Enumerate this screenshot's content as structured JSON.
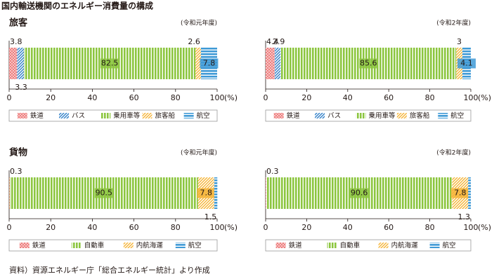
{
  "title": "国内輸送機関のエネルギー消費量の構成",
  "source": "資料）資源エネルギー庁「総合エネルギー統計」より作成",
  "chart_data": [
    {
      "type": "stacked_bar",
      "section": "旅客",
      "subtitle": "(令和元年度)",
      "x_unit": "(%)",
      "xlim": [
        0,
        100
      ],
      "xticks": [
        0,
        20,
        40,
        60,
        80,
        100
      ],
      "series": [
        {
          "name": "鉄道",
          "color": "#ee7f7f",
          "pattern": "check",
          "values": [
            3.8
          ]
        },
        {
          "name": "バス",
          "color": "#2f7fc8",
          "pattern": "diagonal",
          "values": [
            3.3
          ]
        },
        {
          "name": "乗用車等",
          "color": "#8cc63f",
          "pattern": "vertical",
          "values": [
            82.5
          ]
        },
        {
          "name": "旅客船",
          "color": "#f5b335",
          "pattern": "diagonal",
          "values": [
            2.6
          ]
        },
        {
          "name": "航空",
          "color": "#3f9ad6",
          "pattern": "horizontal",
          "values": [
            7.8
          ]
        }
      ]
    },
    {
      "type": "stacked_bar",
      "subtitle": "(令和2年度)",
      "x_unit": "(%)",
      "xlim": [
        0,
        100
      ],
      "xticks": [
        0,
        20,
        40,
        60,
        80,
        100
      ],
      "series": [
        {
          "name": "鉄道",
          "color": "#ee7f7f",
          "pattern": "check",
          "values": [
            4.4
          ]
        },
        {
          "name": "バス",
          "color": "#2f7fc8",
          "pattern": "diagonal",
          "values": [
            2.9
          ]
        },
        {
          "name": "乗用車等",
          "color": "#8cc63f",
          "pattern": "vertical",
          "values": [
            85.6
          ]
        },
        {
          "name": "旅客船",
          "color": "#f5b335",
          "pattern": "diagonal",
          "values": [
            3.0
          ]
        },
        {
          "name": "航空",
          "color": "#3f9ad6",
          "pattern": "horizontal",
          "values": [
            4.1
          ]
        }
      ]
    },
    {
      "type": "stacked_bar",
      "section": "貨物",
      "subtitle": "(令和元年度)",
      "x_unit": "(%)",
      "xlim": [
        0,
        100
      ],
      "xticks": [
        0,
        20,
        40,
        60,
        80,
        100
      ],
      "series": [
        {
          "name": "鉄道",
          "color": "#ee7f7f",
          "pattern": "check",
          "values": [
            0.3
          ]
        },
        {
          "name": "自動車",
          "color": "#8cc63f",
          "pattern": "vertical",
          "values": [
            90.5
          ]
        },
        {
          "name": "内航海運",
          "color": "#f5b335",
          "pattern": "diagonal",
          "values": [
            7.8
          ]
        },
        {
          "name": "航空",
          "color": "#3f9ad6",
          "pattern": "horizontal",
          "values": [
            1.5
          ]
        }
      ]
    },
    {
      "type": "stacked_bar",
      "subtitle": "(令和2年度)",
      "x_unit": "(%)",
      "xlim": [
        0,
        100
      ],
      "xticks": [
        0,
        20,
        40,
        60,
        80,
        100
      ],
      "series": [
        {
          "name": "鉄道",
          "color": "#ee7f7f",
          "pattern": "check",
          "values": [
            0.3
          ]
        },
        {
          "name": "自動車",
          "color": "#8cc63f",
          "pattern": "vertical",
          "values": [
            90.6
          ]
        },
        {
          "name": "内航海運",
          "color": "#f5b335",
          "pattern": "diagonal",
          "values": [
            7.8
          ]
        },
        {
          "name": "航空",
          "color": "#3f9ad6",
          "pattern": "horizontal",
          "values": [
            1.3
          ]
        }
      ]
    }
  ]
}
